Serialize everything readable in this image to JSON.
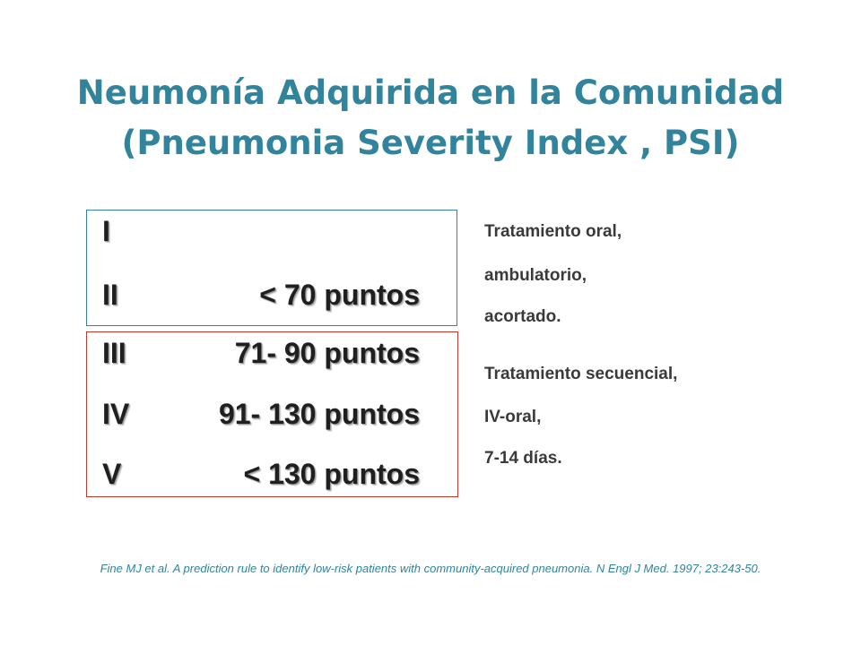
{
  "title": {
    "line1": "Neumonía Adquirida en la Comunidad",
    "line2": "(Pneumonia Severity Index , PSI)"
  },
  "classes": [
    {
      "roman": "I",
      "points": ""
    },
    {
      "roman": "II",
      "points": "< 70 puntos"
    },
    {
      "roman": "III",
      "points": "71- 90 puntos"
    },
    {
      "roman": "IV",
      "points": "91- 130 puntos"
    },
    {
      "roman": "V",
      "points": "< 130 puntos"
    }
  ],
  "treatment_low": [
    "Tratamiento oral,",
    "ambulatorio,",
    "acortado."
  ],
  "treatment_high": [
    "Tratamiento secuencial,",
    "IV-oral,",
    "7-14 días."
  ],
  "reference": "Fine MJ et al. A prediction rule to identify low-risk patients with community-acquired pneumonia. N Engl J Med. 1997; 23:243-50.",
  "colors": {
    "title": "#31849b",
    "low_risk_border": "#31849b",
    "high_risk_border": "#c0392b",
    "reference": "#31849b"
  }
}
